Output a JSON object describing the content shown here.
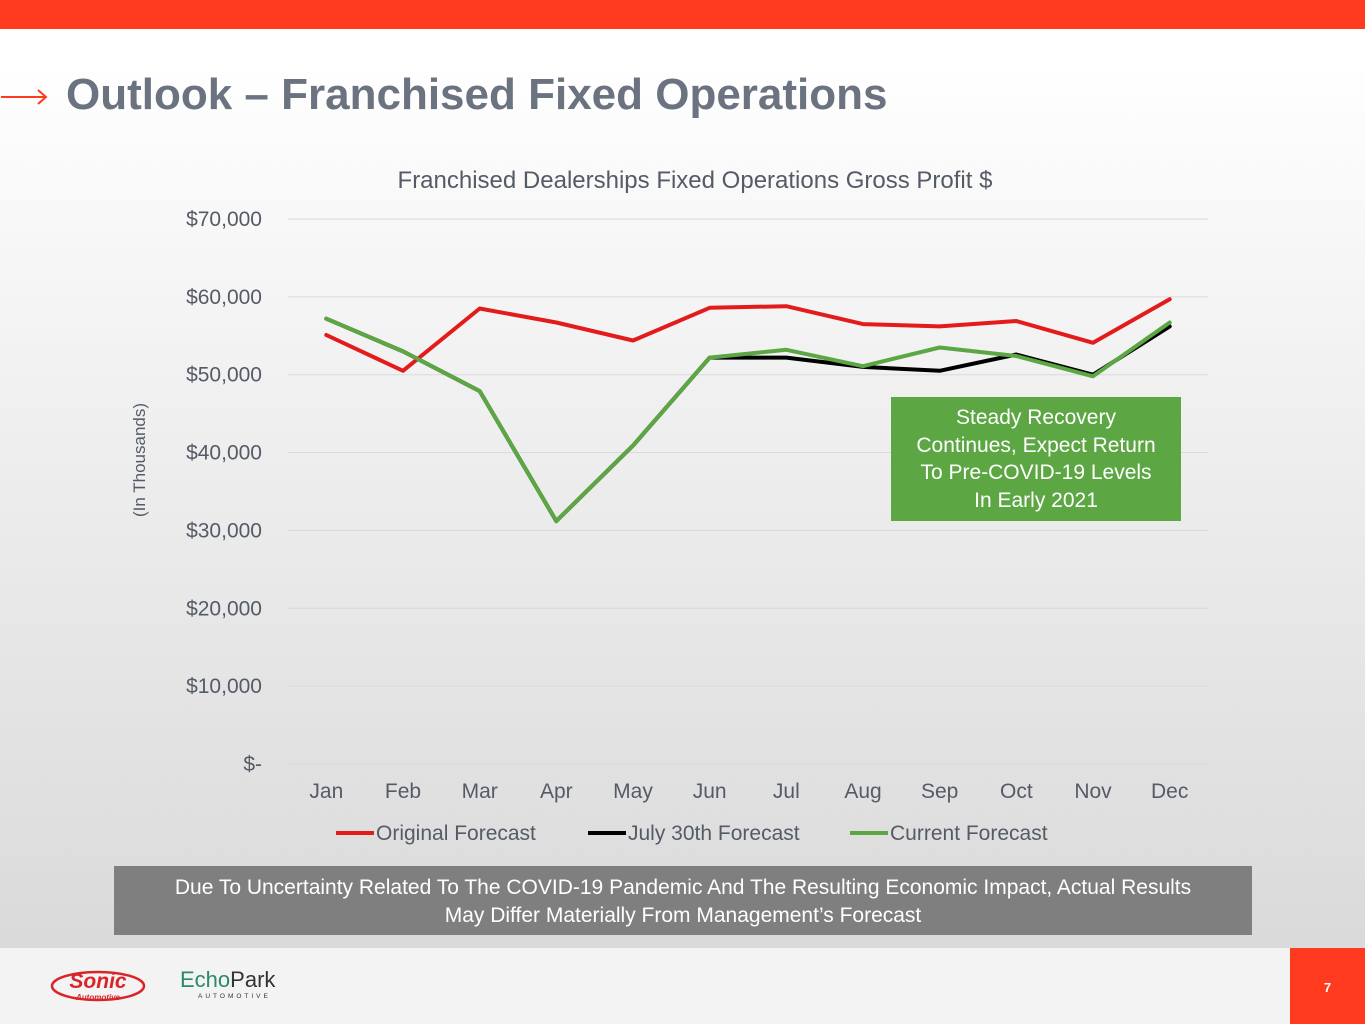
{
  "slide": {
    "title": "Outlook – Franchised Fixed Operations",
    "page_number": "7",
    "accent_color": "#ff3a1f"
  },
  "chart_data": {
    "type": "line",
    "title": "Franchised Dealerships Fixed Operations Gross Profit $",
    "xlabel": "",
    "ylabel": "(In Thousands)",
    "categories": [
      "Jan",
      "Feb",
      "Mar",
      "Apr",
      "May",
      "Jun",
      "Jul",
      "Aug",
      "Sep",
      "Oct",
      "Nov",
      "Dec"
    ],
    "series": [
      {
        "name": "Original Forecast",
        "color": "#e31b1b",
        "values": [
          55100,
          50500,
          58500,
          56700,
          54400,
          58600,
          58800,
          56500,
          56200,
          56900,
          54100,
          59700
        ]
      },
      {
        "name": "July 30th Forecast",
        "color": "#000000",
        "values": [
          57200,
          53000,
          47900,
          31200,
          40900,
          52200,
          52200,
          51000,
          50500,
          52600,
          50000,
          56200
        ]
      },
      {
        "name": "Current Forecast",
        "color": "#5ca744",
        "values": [
          57200,
          53000,
          47900,
          31200,
          40900,
          52200,
          53200,
          51100,
          53500,
          52400,
          49800,
          56700
        ]
      }
    ],
    "ylim": [
      0,
      70000
    ],
    "ytick_values": [
      0,
      10000,
      20000,
      30000,
      40000,
      50000,
      60000,
      70000
    ],
    "ytick_labels": [
      "$-",
      "$10,000",
      "$20,000",
      "$30,000",
      "$40,000",
      "$50,000",
      "$60,000",
      "$70,000"
    ],
    "grid": true,
    "legend_position": "bottom",
    "annotation": {
      "lines": [
        "Steady Recovery",
        "Continues, Expect Return",
        "To Pre-COVID-19 Levels",
        "In Early 2021"
      ],
      "color": "#5ca744"
    }
  },
  "disclaimer": {
    "lines": [
      "Due To Uncertainty Related To The COVID-19 Pandemic And The Resulting Economic Impact, Actual Results",
      "May Differ Materially From Management’s Forecast"
    ]
  },
  "logos": {
    "sonic_word": "Sonic",
    "sonic_sub": "Automotive",
    "echo_part1": "Echo",
    "echo_part2": "Park",
    "echo_sub": "AUTOMOTIVE"
  }
}
